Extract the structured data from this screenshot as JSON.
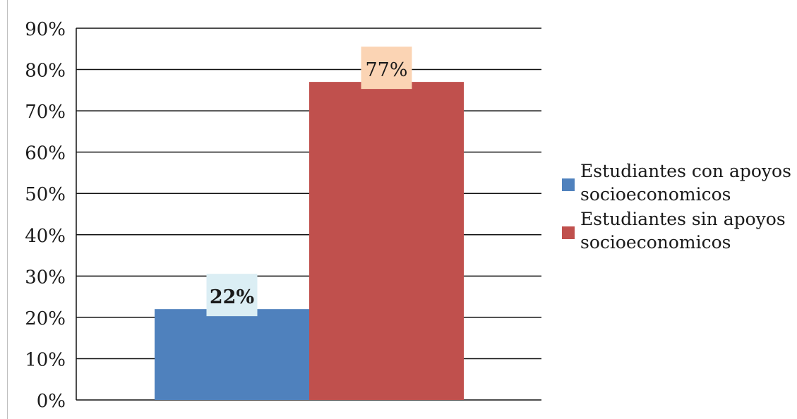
{
  "chart_data": {
    "type": "bar",
    "categories": [
      "Estudiantes con apoyos socioeconomicos",
      "Estudiantes sin apoyos socioeconomicos"
    ],
    "values": [
      22,
      77
    ],
    "value_labels": [
      "22%",
      "77%"
    ],
    "title": "",
    "xlabel": "",
    "ylabel": "",
    "ylim": [
      0,
      90
    ],
    "y_ticks": [
      "0%",
      "10%",
      "20%",
      "30%",
      "40%",
      "50%",
      "60%",
      "70%",
      "80%",
      "90%"
    ],
    "grid": true,
    "legend_position": "right",
    "legend": [
      {
        "label": "Estudiantes con apoyos socioeconomicos",
        "color": "#4f81bd"
      },
      {
        "label": "Estudiantes sin apoyos socioeconomicos",
        "color": "#c0504d"
      }
    ],
    "bar_colors": [
      "#4f81bd",
      "#c0504d"
    ],
    "label_backgrounds": [
      "#dbeef4",
      "#fbd4b4"
    ]
  }
}
